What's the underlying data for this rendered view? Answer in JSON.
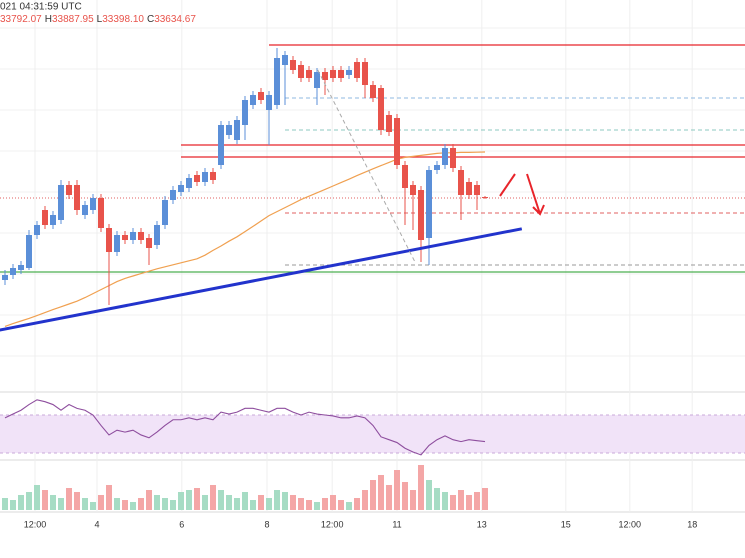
{
  "header": {
    "time": "021 04:31:59 UTC",
    "open": "33792.07",
    "high_label": "H",
    "high": "33887.95",
    "low_label": "L",
    "low": "33398.10",
    "close_label": "C",
    "close": "33634.67"
  },
  "chart_data": {
    "type": "candlestick",
    "up_color": "#5b8fd8",
    "down_color": "#e8534b",
    "ylim": [
      28750,
      38500
    ],
    "open": [
      31500,
      31625,
      31750,
      31800,
      32625,
      33250,
      32875,
      33000,
      33875,
      33875,
      33125,
      33250,
      33550,
      32800,
      32200,
      32625,
      32500,
      32700,
      32550,
      32375,
      32875,
      33500,
      33700,
      33800,
      34125,
      33950,
      34200,
      34375,
      35125,
      35000,
      35375,
      35875,
      36200,
      35750,
      35875,
      36875,
      37000,
      36875,
      36750,
      36300,
      36700,
      36750,
      36750,
      36625,
      36950,
      36950,
      36375,
      36300,
      35625,
      35550,
      34375,
      33875,
      33750,
      32550,
      34250,
      34375,
      34800,
      34250,
      33950,
      33875,
      33575
    ],
    "high": [
      31750,
      31900,
      31975,
      32750,
      32975,
      33350,
      33225,
      34000,
      33975,
      34000,
      33475,
      33650,
      33650,
      32900,
      32725,
      32725,
      32800,
      32800,
      32650,
      32975,
      33600,
      33850,
      33975,
      34150,
      34225,
      34300,
      34300,
      35475,
      35475,
      35600,
      36100,
      36225,
      36300,
      36225,
      37300,
      37225,
      37100,
      36975,
      36850,
      36800,
      36800,
      36850,
      36850,
      36850,
      37050,
      37050,
      36475,
      36375,
      35725,
      35650,
      34475,
      33975,
      33850,
      34350,
      34475,
      34900,
      34900,
      34350,
      34050,
      33975,
      33600
    ],
    "low": [
      31375,
      31525,
      31650,
      31750,
      32525,
      32775,
      32775,
      32900,
      33525,
      33125,
      33025,
      33150,
      32700,
      30875,
      32100,
      32400,
      32400,
      32400,
      31875,
      32275,
      32775,
      33400,
      33600,
      33700,
      33850,
      33850,
      33900,
      34275,
      35025,
      34900,
      35000,
      35775,
      35900,
      34875,
      35775,
      35875,
      36650,
      36450,
      36450,
      35875,
      36125,
      36450,
      36450,
      36525,
      36450,
      36050,
      35950,
      35125,
      35100,
      34275,
      32875,
      32750,
      31950,
      31875,
      34150,
      34275,
      34200,
      33000,
      33525,
      33250,
      33525
    ],
    "close": [
      31625,
      31800,
      31875,
      32625,
      32875,
      32875,
      33125,
      33875,
      33625,
      33250,
      33375,
      33550,
      32800,
      32200,
      32625,
      32500,
      32700,
      32500,
      32300,
      32875,
      33500,
      33750,
      33875,
      34050,
      33950,
      34200,
      34000,
      35375,
      35375,
      35500,
      36000,
      36125,
      36000,
      36125,
      37050,
      37125,
      36750,
      36550,
      36550,
      36700,
      36500,
      36550,
      36550,
      36750,
      36550,
      36375,
      36050,
      35250,
      35200,
      34375,
      33800,
      33625,
      32500,
      34250,
      34375,
      34800,
      34300,
      33625,
      33625,
      33625,
      33550
    ],
    "moving_average": {
      "color": "#f0a050",
      "values": [
        30340,
        30410,
        30475,
        30540,
        30610,
        30685,
        30760,
        30830,
        30900,
        30970,
        31060,
        31160,
        31260,
        31360,
        31460,
        31540,
        31600,
        31660,
        31720,
        31780,
        31830,
        31880,
        31930,
        31980,
        32030,
        32120,
        32240,
        32350,
        32470,
        32580,
        32710,
        32840,
        32975,
        33110,
        33210,
        33310,
        33410,
        33510,
        33595,
        33680,
        33765,
        33850,
        33935,
        34020,
        34110,
        34195,
        34280,
        34360,
        34440,
        34520,
        34565,
        34590,
        34615,
        34640,
        34665,
        34680,
        34680,
        34690,
        34690,
        34695,
        34700
      ]
    },
    "trendlines": [
      {
        "color": "#2233cc",
        "width": 3,
        "dash": "none",
        "x": [
          -1,
          64.6
        ],
        "y": [
          30235,
          32780
        ]
      },
      {
        "color": "#aaaaaa",
        "width": 1,
        "dash": "4 3",
        "x": [
          39.1,
          51.25
        ],
        "y": [
          36750,
          31950
        ]
      }
    ],
    "levels": [
      {
        "value": 37375,
        "color": "#e8242a",
        "dash": "none",
        "start": 33
      },
      {
        "value": 34875,
        "color": "#e8242a",
        "dash": "none",
        "start": 22
      },
      {
        "value": 34575,
        "color": "#e8242a",
        "dash": "none",
        "start": 22
      },
      {
        "value": 36050,
        "color": "#8fb8e0",
        "dash": "4 3",
        "start": 35
      },
      {
        "value": 35250,
        "color": "#8cc8c0",
        "dash": "4 3",
        "start": 35
      },
      {
        "value": 33550,
        "color": "#e06060",
        "dash": "1 2",
        "start": -1
      },
      {
        "value": 33175,
        "color": "#e06060",
        "dash": "4 3",
        "start": 35
      },
      {
        "value": 31875,
        "color": "#999999",
        "dash": "4 3",
        "start": 35
      },
      {
        "value": 31700,
        "color": "#4caf50",
        "dash": "none",
        "start": -1
      }
    ],
    "rsi": {
      "color": "#8e4e9e",
      "band": [
        30,
        70
      ],
      "band_color": "#f1e3f8",
      "values": [
        67,
        71,
        75,
        81,
        86,
        84,
        81,
        75,
        81,
        77,
        75,
        70,
        59,
        49,
        54,
        52,
        54,
        49,
        46,
        52,
        59,
        65,
        65,
        67,
        65,
        67,
        65,
        73,
        71,
        73,
        77,
        77,
        75,
        73,
        77,
        77,
        73,
        70,
        73,
        71,
        70,
        69,
        67,
        67,
        69,
        67,
        59,
        47,
        44,
        41,
        35,
        31,
        28,
        38,
        44,
        48,
        44,
        42,
        44,
        43,
        42
      ]
    },
    "volume": {
      "up_color": "#a6dcc4",
      "down_color": "#f4a6a6",
      "ylim": [
        0,
        60
      ],
      "values": [
        12,
        10,
        15,
        18,
        25,
        20,
        15,
        12,
        22,
        18,
        12,
        8,
        15,
        25,
        12,
        10,
        8,
        12,
        20,
        15,
        12,
        10,
        18,
        20,
        22,
        15,
        25,
        20,
        15,
        12,
        18,
        10,
        15,
        12,
        20,
        18,
        15,
        12,
        10,
        8,
        12,
        15,
        10,
        8,
        12,
        20,
        30,
        35,
        25,
        40,
        28,
        20,
        45,
        30,
        22,
        18,
        15,
        20,
        15,
        18,
        22
      ]
    },
    "xticks": [
      {
        "value": 3.75,
        "label": "12:00"
      },
      {
        "value": 11.5,
        "label": "4"
      },
      {
        "value": 22.1,
        "label": "6"
      },
      {
        "value": 32.75,
        "label": "8"
      },
      {
        "value": 40.9,
        "label": "12:00"
      },
      {
        "value": 49,
        "label": "11"
      },
      {
        "value": 59.6,
        "label": "13"
      },
      {
        "value": 70.1,
        "label": "15"
      },
      {
        "value": 78.1,
        "label": "12:00"
      },
      {
        "value": 85.9,
        "label": "18"
      }
    ]
  }
}
